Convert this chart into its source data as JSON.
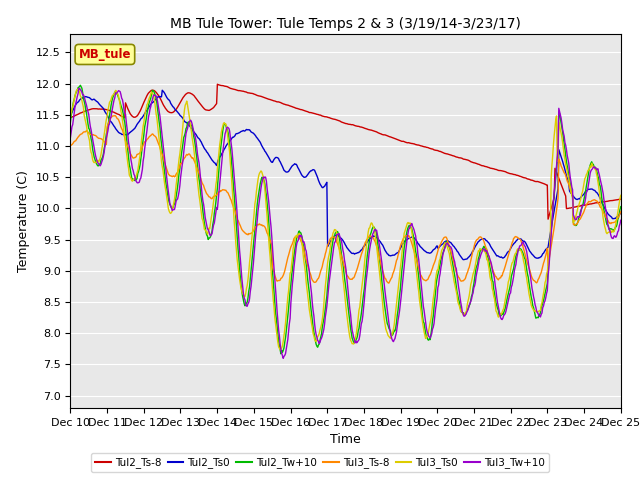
{
  "title": "MB Tule Tower: Tule Temps 2 & 3 (3/19/14-3/23/17)",
  "xlabel": "Time",
  "ylabel": "Temperature (C)",
  "ylim": [
    6.8,
    12.8
  ],
  "yticks": [
    7.0,
    7.5,
    8.0,
    8.5,
    9.0,
    9.5,
    10.0,
    10.5,
    11.0,
    11.5,
    12.0,
    12.5
  ],
  "xtick_labels": [
    "Dec 10",
    "Dec 11",
    "Dec 12",
    "Dec 13",
    "Dec 14",
    "Dec 15",
    "Dec 16",
    "Dec 17",
    "Dec 18",
    "Dec 19",
    "Dec 20",
    "Dec 21",
    "Dec 22",
    "Dec 23",
    "Dec 24",
    "Dec 25"
  ],
  "series_colors": {
    "Tul2_Ts-8": "#cc0000",
    "Tul2_Ts0": "#0000cc",
    "Tul2_Tw+10": "#00bb00",
    "Tul3_Ts-8": "#ff8800",
    "Tul3_Ts0": "#ddcc00",
    "Tul3_Tw+10": "#9900cc"
  },
  "background_color": "#e8e8e8",
  "inset_label": "MB_tule",
  "inset_label_color": "#cc0000",
  "inset_bg_color": "#ffff99",
  "title_fontsize": 10,
  "axis_fontsize": 9,
  "tick_fontsize": 8,
  "linewidth": 1.0
}
